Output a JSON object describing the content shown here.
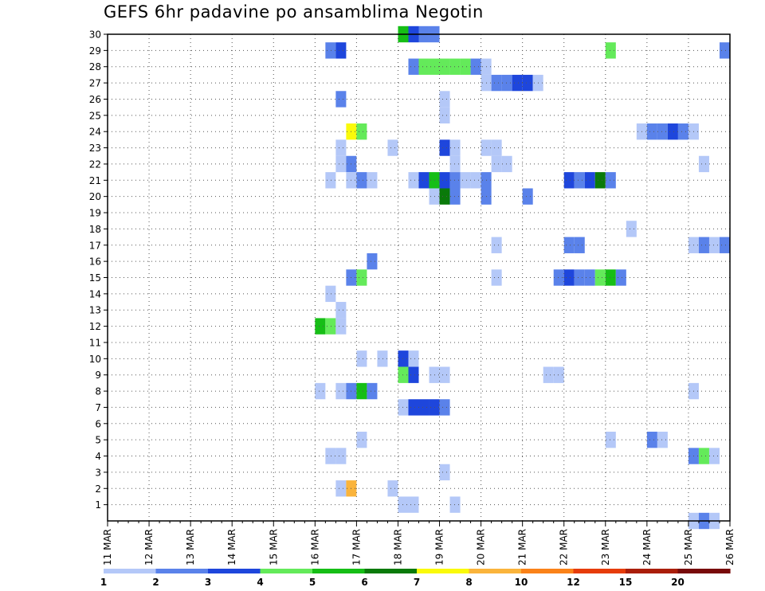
{
  "chart_data": {
    "type": "heatmap",
    "title": "GEFS 6hr padavine po ansamblima Negotin",
    "x_ticks": [
      "11 MAR",
      "12 MAR",
      "13 MAR",
      "14 MAR",
      "15 MAR",
      "16 MAR",
      "17 MAR",
      "18 MAR",
      "19 MAR",
      "20 MAR",
      "21 MAR",
      "22 MAR",
      "23 MAR",
      "24 MAR",
      "25 MAR",
      "26 MAR"
    ],
    "x_range": [
      "11 MAR 00Z",
      "26 MAR 00Z"
    ],
    "y_ticks": [
      1,
      2,
      3,
      4,
      5,
      6,
      7,
      8,
      9,
      10,
      11,
      12,
      13,
      14,
      15,
      16,
      17,
      18,
      19,
      20,
      21,
      22,
      23,
      24,
      25,
      26,
      27,
      28,
      29,
      30
    ],
    "y_range": [
      0,
      30
    ],
    "grid": true,
    "x_step": "6hr",
    "colorbar": {
      "labels": [
        "1",
        "2",
        "3",
        "4",
        "5",
        "6",
        "7",
        "8",
        "10",
        "12",
        "15",
        "20"
      ],
      "colors": [
        "#b4c8f8",
        "#5a82ea",
        "#1e46dc",
        "#64ea5a",
        "#16be16",
        "#0a7a0a",
        "#fafa0a",
        "#fab43c",
        "#fa8219",
        "#e63c0a",
        "#aa1e0a",
        "#780a0a"
      ]
    },
    "cells": [
      {
        "y": 30,
        "cells": [
          [
            18.0,
            5
          ],
          [
            18.25,
            3
          ],
          [
            18.5,
            2
          ],
          [
            18.75,
            2
          ]
        ]
      },
      {
        "y": 29,
        "cells": [
          [
            16.25,
            2
          ],
          [
            16.5,
            3
          ],
          [
            23.0,
            4
          ],
          [
            25.75,
            2
          ]
        ]
      },
      {
        "y": 28,
        "cells": [
          [
            18.25,
            2
          ],
          [
            18.5,
            4
          ],
          [
            18.75,
            4
          ],
          [
            19.0,
            4
          ],
          [
            19.25,
            4
          ],
          [
            19.5,
            4
          ],
          [
            19.75,
            2
          ],
          [
            20.0,
            1
          ]
        ]
      },
      {
        "y": 27,
        "cells": [
          [
            20.0,
            1
          ],
          [
            20.25,
            2
          ],
          [
            20.5,
            2
          ],
          [
            20.75,
            3
          ],
          [
            21.0,
            3
          ],
          [
            21.25,
            1
          ]
        ]
      },
      {
        "y": 26,
        "cells": [
          [
            16.5,
            2
          ],
          [
            19.0,
            1
          ]
        ]
      },
      {
        "y": 25,
        "cells": [
          [
            19.0,
            1
          ]
        ]
      },
      {
        "y": 24,
        "cells": [
          [
            16.75,
            7
          ],
          [
            17.0,
            4
          ],
          [
            23.75,
            1
          ],
          [
            24.0,
            2
          ],
          [
            24.25,
            2
          ],
          [
            24.5,
            3
          ],
          [
            24.75,
            2
          ],
          [
            25.0,
            1
          ]
        ]
      },
      {
        "y": 23,
        "cells": [
          [
            16.5,
            1
          ],
          [
            17.75,
            1
          ],
          [
            19.0,
            3
          ],
          [
            19.25,
            1
          ],
          [
            20.0,
            1
          ],
          [
            20.25,
            1
          ]
        ]
      },
      {
        "y": 22,
        "cells": [
          [
            16.5,
            1
          ],
          [
            16.75,
            2
          ],
          [
            19.25,
            1
          ],
          [
            20.25,
            1
          ],
          [
            20.5,
            1
          ],
          [
            25.25,
            1
          ]
        ]
      },
      {
        "y": 21,
        "cells": [
          [
            16.25,
            1
          ],
          [
            16.75,
            1
          ],
          [
            17.0,
            2
          ],
          [
            17.25,
            1
          ],
          [
            18.25,
            1
          ],
          [
            18.5,
            3
          ],
          [
            18.75,
            5
          ],
          [
            19.0,
            3
          ],
          [
            19.25,
            2
          ],
          [
            19.5,
            1
          ],
          [
            19.75,
            1
          ],
          [
            20.0,
            2
          ],
          [
            22.0,
            3
          ],
          [
            22.25,
            2
          ],
          [
            22.5,
            3
          ],
          [
            22.75,
            6
          ],
          [
            23.0,
            2
          ]
        ]
      },
      {
        "y": 20,
        "cells": [
          [
            18.75,
            1
          ],
          [
            19.0,
            6
          ],
          [
            19.25,
            2
          ],
          [
            20.0,
            2
          ],
          [
            21.0,
            2
          ]
        ]
      },
      {
        "y": 19,
        "cells": []
      },
      {
        "y": 18,
        "cells": [
          [
            23.5,
            1
          ]
        ]
      },
      {
        "y": 17,
        "cells": [
          [
            20.25,
            1
          ],
          [
            22.0,
            2
          ],
          [
            22.25,
            2
          ],
          [
            25.0,
            1
          ],
          [
            25.25,
            2
          ],
          [
            25.5,
            1
          ],
          [
            25.75,
            2
          ]
        ]
      },
      {
        "y": 16,
        "cells": [
          [
            17.25,
            2
          ]
        ]
      },
      {
        "y": 15,
        "cells": [
          [
            16.75,
            2
          ],
          [
            17.0,
            4
          ],
          [
            20.25,
            1
          ],
          [
            21.75,
            2
          ],
          [
            22.0,
            3
          ],
          [
            22.25,
            2
          ],
          [
            22.5,
            2
          ],
          [
            22.75,
            4
          ],
          [
            23.0,
            5
          ],
          [
            23.25,
            2
          ]
        ]
      },
      {
        "y": 14,
        "cells": [
          [
            16.25,
            1
          ]
        ]
      },
      {
        "y": 13,
        "cells": [
          [
            16.5,
            1
          ]
        ]
      },
      {
        "y": 12,
        "cells": [
          [
            16.0,
            5
          ],
          [
            16.25,
            4
          ],
          [
            16.5,
            1
          ]
        ]
      },
      {
        "y": 11,
        "cells": []
      },
      {
        "y": 10,
        "cells": [
          [
            17.0,
            1
          ],
          [
            17.5,
            1
          ],
          [
            18.0,
            3
          ],
          [
            18.25,
            1
          ]
        ]
      },
      {
        "y": 9,
        "cells": [
          [
            18.0,
            4
          ],
          [
            18.25,
            3
          ],
          [
            18.75,
            1
          ],
          [
            19.0,
            1
          ],
          [
            21.5,
            1
          ],
          [
            21.75,
            1
          ]
        ]
      },
      {
        "y": 8,
        "cells": [
          [
            16.0,
            1
          ],
          [
            16.5,
            1
          ],
          [
            16.75,
            2
          ],
          [
            17.0,
            5
          ],
          [
            17.25,
            2
          ],
          [
            25.0,
            1
          ]
        ]
      },
      {
        "y": 7,
        "cells": [
          [
            18.0,
            1
          ],
          [
            18.25,
            3
          ],
          [
            18.5,
            3
          ],
          [
            18.75,
            3
          ],
          [
            19.0,
            2
          ]
        ]
      },
      {
        "y": 6,
        "cells": []
      },
      {
        "y": 5,
        "cells": [
          [
            17.0,
            1
          ],
          [
            23.0,
            1
          ],
          [
            24.0,
            2
          ],
          [
            24.25,
            1
          ]
        ]
      },
      {
        "y": 4,
        "cells": [
          [
            16.25,
            1
          ],
          [
            16.5,
            1
          ],
          [
            25.0,
            2
          ],
          [
            25.25,
            4
          ],
          [
            25.5,
            1
          ]
        ]
      },
      {
        "y": 3,
        "cells": [
          [
            19.0,
            1
          ]
        ]
      },
      {
        "y": 2,
        "cells": [
          [
            16.5,
            1
          ],
          [
            16.75,
            8
          ],
          [
            17.75,
            1
          ]
        ]
      },
      {
        "y": 1,
        "cells": [
          [
            18.0,
            1
          ],
          [
            18.25,
            1
          ],
          [
            19.25,
            1
          ]
        ]
      },
      {
        "y": 0,
        "cells": [
          [
            25.0,
            1
          ],
          [
            25.25,
            2
          ],
          [
            25.5,
            1
          ]
        ]
      }
    ]
  }
}
